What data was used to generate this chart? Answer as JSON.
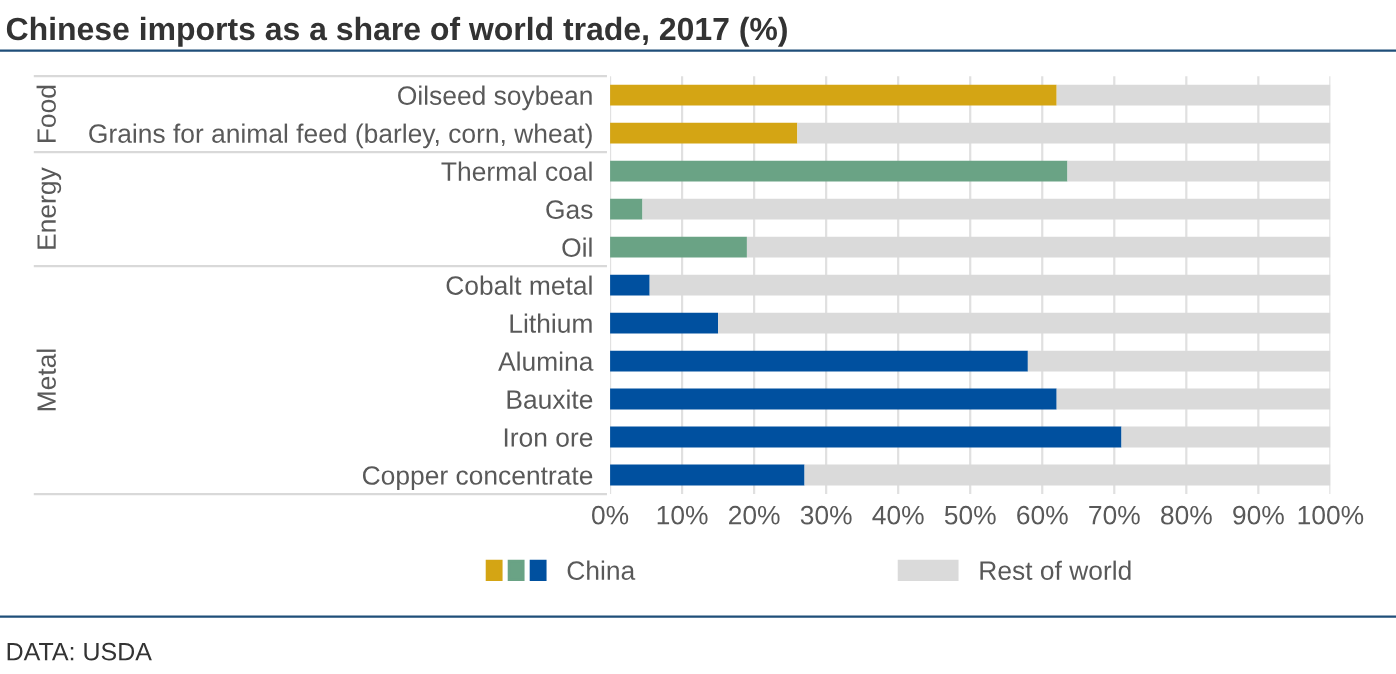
{
  "chart_data": {
    "type": "bar",
    "orientation": "horizontal",
    "stacked": true,
    "title": "Chinese imports as a share of world trade, 2017 (%)",
    "categories": [
      "Oilseed soybean",
      "Grains for animal feed (barley, corn, wheat)",
      "Thermal coal",
      "Gas",
      "Oil",
      "Cobalt metal",
      "Lithium",
      "Alumina",
      "Bauxite",
      "Iron ore",
      "Copper concentrate"
    ],
    "series": [
      {
        "name": "China",
        "colors": [
          "#d4a514",
          "#d4a514",
          "#6aa385",
          "#6aa385",
          "#6aa385",
          "#00509f",
          "#00509f",
          "#00509f",
          "#00509f",
          "#00509f",
          "#00509f"
        ],
        "values": [
          62,
          26,
          63.5,
          4.5,
          19,
          5.5,
          15,
          58,
          62,
          71,
          27
        ]
      },
      {
        "name": "Rest of world",
        "color": "#dadada",
        "values": [
          38,
          74,
          36.5,
          95.5,
          81,
          94.5,
          85,
          42,
          38,
          29,
          73
        ]
      }
    ],
    "xlim": [
      0,
      100
    ],
    "xticks": [
      {
        "value": 0,
        "label": "0%"
      },
      {
        "value": 10,
        "label": "10%"
      },
      {
        "value": 20,
        "label": "20%"
      },
      {
        "value": 30,
        "label": "30%"
      },
      {
        "value": 40,
        "label": "40%"
      },
      {
        "value": 50,
        "label": "50%"
      },
      {
        "value": 60,
        "label": "60%"
      },
      {
        "value": 70,
        "label": "70%"
      },
      {
        "value": 80,
        "label": "80%"
      },
      {
        "value": 90,
        "label": "90%"
      },
      {
        "value": 100,
        "label": "100%"
      }
    ],
    "grid": "x",
    "legend": "bottom",
    "annotations": [
      "Food",
      "Energy",
      "Metal",
      "DATA: USDA"
    ]
  }
}
